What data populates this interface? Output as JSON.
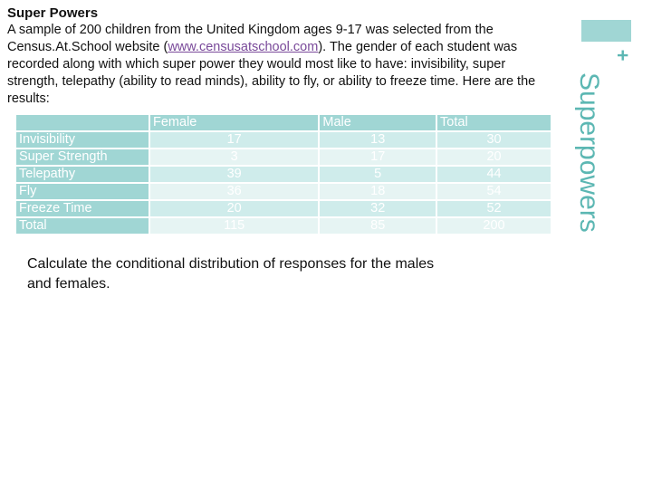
{
  "slide": {
    "title": "Super Powers",
    "intro_before_link": "A sample of 200 children from the United Kingdom ages 9-17 was selected from the Census.At.School website (",
    "link_text": "www.censusatschool.com",
    "intro_after_link": ").  The gender of each student was recorded along with which super power they would most like to have: invisibility, super strength, telepathy (ability to read minds), ability to fly, or ability to freeze time.  Here are the results:",
    "question": "Calculate the conditional distribution of responses for the males and females.",
    "side_title": "Superpowers",
    "plus": "+"
  },
  "table": {
    "headers": [
      "",
      "Female",
      "Male",
      "Total"
    ],
    "rows": [
      {
        "category": "Invisibility",
        "female": "17",
        "male": "13",
        "total": "30"
      },
      {
        "category": "Super Strength",
        "female": "3",
        "male": "17",
        "total": "20"
      },
      {
        "category": "Telepathy",
        "female": "39",
        "male": "5",
        "total": "44"
      },
      {
        "category": "Fly",
        "female": "36",
        "male": "18",
        "total": "54"
      },
      {
        "category": "Freeze Time",
        "female": "20",
        "male": "32",
        "total": "52"
      },
      {
        "category": "Total",
        "female": "115",
        "male": "85",
        "total": "200"
      }
    ]
  },
  "colors": {
    "accent": "#a0d6d4",
    "accent_dark": "#5cb7b3",
    "row_light": "#cfeceb",
    "row_lighter": "#e6f4f3",
    "link": "#7a4a9a"
  }
}
